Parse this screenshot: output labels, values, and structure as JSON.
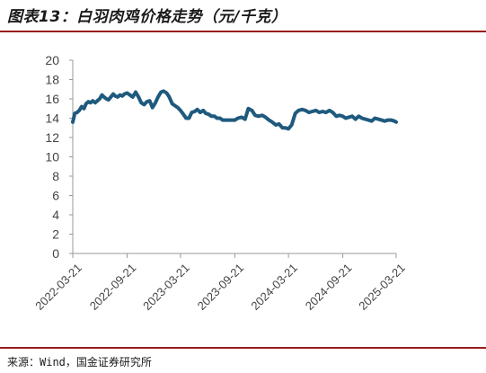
{
  "header": {
    "title": "图表13：白羽肉鸡价格走势（元/千克）"
  },
  "footer": {
    "source": "来源：Wind，国金证券研究所"
  },
  "chart_data": {
    "type": "line",
    "title": "图表13：白羽肉鸡价格走势（元/千克）",
    "xlabel": "",
    "ylabel": "",
    "ylim": [
      0,
      20
    ],
    "yticks": [
      0,
      2,
      4,
      6,
      8,
      10,
      12,
      14,
      16,
      18,
      20
    ],
    "xticks": [
      "2022-03-21",
      "2022-09-21",
      "2023-03-21",
      "2023-09-21",
      "2024-03-21",
      "2024-09-21",
      "2025-03-21"
    ],
    "grid": false,
    "legend": "none",
    "colors": {
      "line": "#1f5a7e",
      "axis": "#999999"
    },
    "series": [
      {
        "x": [
          "2022-03-21",
          "2022-03-28",
          "2022-04-05",
          "2022-04-12",
          "2022-04-20",
          "2022-04-28",
          "2022-05-05",
          "2022-05-13",
          "2022-05-20",
          "2022-05-28",
          "2022-06-05",
          "2022-06-12",
          "2022-06-20",
          "2022-06-28",
          "2022-07-05",
          "2022-07-13",
          "2022-07-20",
          "2022-07-28",
          "2022-08-05",
          "2022-08-12",
          "2022-08-20",
          "2022-08-28",
          "2022-09-05",
          "2022-09-12",
          "2022-09-21",
          "2022-10-01",
          "2022-10-10",
          "2022-10-20",
          "2022-10-30",
          "2022-11-08",
          "2022-11-18",
          "2022-11-27",
          "2022-12-07",
          "2022-12-16",
          "2022-12-26",
          "2023-01-04",
          "2023-01-14",
          "2023-01-23",
          "2023-02-02",
          "2023-02-11",
          "2023-02-21",
          "2023-03-02",
          "2023-03-12",
          "2023-03-21",
          "2023-03-31",
          "2023-04-09",
          "2023-04-19",
          "2023-04-28",
          "2023-05-08",
          "2023-05-17",
          "2023-05-27",
          "2023-06-06",
          "2023-06-15",
          "2023-06-25",
          "2023-07-04",
          "2023-07-14",
          "2023-07-23",
          "2023-08-02",
          "2023-08-11",
          "2023-08-21",
          "2023-09-21",
          "2023-10-02",
          "2023-10-14",
          "2023-10-26",
          "2023-11-06",
          "2023-11-18",
          "2023-11-29",
          "2023-12-11",
          "2023-12-23",
          "2024-01-03",
          "2024-01-15",
          "2024-01-26",
          "2024-02-07",
          "2024-02-18",
          "2024-03-01",
          "2024-03-11",
          "2024-03-21",
          "2024-04-01",
          "2024-04-13",
          "2024-04-24",
          "2024-05-06",
          "2024-05-18",
          "2024-05-29",
          "2024-06-10",
          "2024-06-22",
          "2024-07-03",
          "2024-07-15",
          "2024-07-26",
          "2024-08-07",
          "2024-08-18",
          "2024-08-30",
          "2024-09-10",
          "2024-09-21",
          "2024-10-01",
          "2024-10-12",
          "2024-10-23",
          "2024-11-03",
          "2024-11-14",
          "2024-11-25",
          "2024-12-06",
          "2024-12-17",
          "2024-12-28",
          "2025-01-08",
          "2025-01-19",
          "2025-01-30",
          "2025-02-10",
          "2025-02-21",
          "2025-03-04",
          "2025-03-15",
          "2025-03-21"
        ],
        "values": [
          13.6,
          14.5,
          14.6,
          14.8,
          15.2,
          15.0,
          15.5,
          15.7,
          15.6,
          15.8,
          15.6,
          15.8,
          16.0,
          16.4,
          16.2,
          16.0,
          15.9,
          16.2,
          16.5,
          16.3,
          16.2,
          16.4,
          16.3,
          16.5,
          16.6,
          16.4,
          16.2,
          16.7,
          16.2,
          15.6,
          15.4,
          15.7,
          15.8,
          15.1,
          15.6,
          16.2,
          16.7,
          16.8,
          16.6,
          16.2,
          15.5,
          15.3,
          15.1,
          14.8,
          14.4,
          14.0,
          14.0,
          14.6,
          14.7,
          14.9,
          14.6,
          14.8,
          14.5,
          14.4,
          14.2,
          14.2,
          14.0,
          14.0,
          13.8,
          13.8,
          13.8,
          14.0,
          14.1,
          13.9,
          15.0,
          14.8,
          14.3,
          14.2,
          14.3,
          14.1,
          13.8,
          13.6,
          13.3,
          13.4,
          13.0,
          13.0,
          12.9,
          13.3,
          14.5,
          14.8,
          14.9,
          14.8,
          14.6,
          14.7,
          14.8,
          14.6,
          14.7,
          14.6,
          14.8,
          14.6,
          14.2,
          14.3,
          14.2,
          14.0,
          14.1,
          14.2,
          13.9,
          14.2,
          14.0,
          13.9,
          13.8,
          13.7,
          14.0,
          13.9,
          13.8,
          13.7,
          13.8,
          13.8,
          13.7,
          13.6
        ]
      }
    ]
  }
}
